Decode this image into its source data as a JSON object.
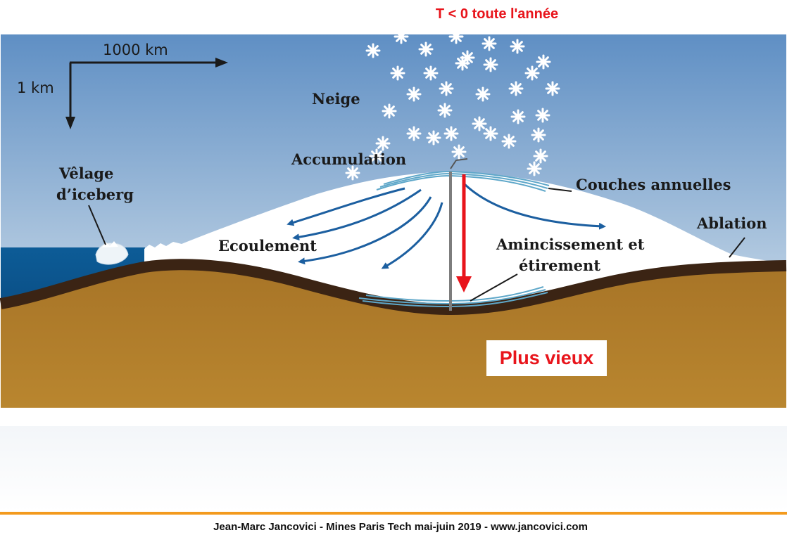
{
  "title": "T < 0 toute l'année",
  "footer": "Jean-Marc Jancovici - Mines Paris Tech mai-juin 2019 - www.jancovici.com",
  "highlight": "Plus vieux",
  "scale": {
    "horizontal": "1000 km",
    "vertical": "1 km"
  },
  "labels": {
    "snow": "Neige",
    "accumulation": "Accumulation",
    "calving_line1": "Vêlage",
    "calving_line2": "d’iceberg",
    "annual_layers": "Couches annuelles",
    "ablation": "Ablation",
    "flow": "Ecoulement",
    "thinning_line1": "Amincissement et",
    "thinning_line2": "étirement"
  },
  "colors": {
    "title_red": "#e8141b",
    "sky_top": "#5f8fc4",
    "sky_bottom": "#e6eff6",
    "ocean": "#0f5f98",
    "bedrock": "#b07d2a",
    "bedrock_crust": "#3b2414",
    "flow_arrow": "#1c5fa0",
    "footer_rule": "#f39a1d"
  }
}
